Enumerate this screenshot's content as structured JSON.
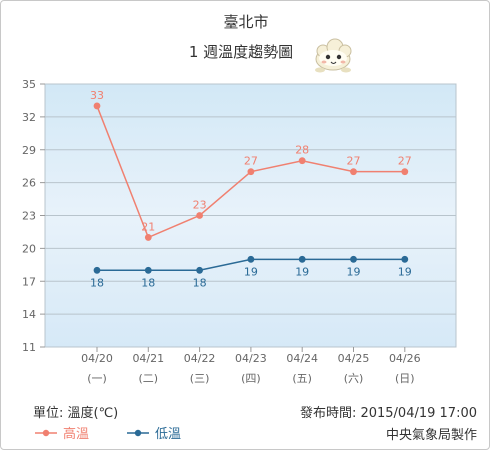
{
  "chart_data": {
    "type": "line",
    "title": "臺北市",
    "subtitle": "1 週溫度趨勢圖",
    "categories": [
      "04/20",
      "04/21",
      "04/22",
      "04/23",
      "04/24",
      "04/25",
      "04/26"
    ],
    "weekdays": [
      "(一)",
      "(二)",
      "(三)",
      "(四)",
      "(五)",
      "(六)",
      "(日)"
    ],
    "ylim": [
      11,
      35
    ],
    "yticks": [
      11,
      14,
      17,
      20,
      23,
      26,
      29,
      32,
      35
    ],
    "grid": true,
    "legend_position": "bottom-left",
    "series": [
      {
        "name": "高溫",
        "color": "#f08070",
        "values": [
          33,
          21,
          23,
          27,
          28,
          27,
          27
        ]
      },
      {
        "name": "低溫",
        "color": "#2a6a96",
        "values": [
          18,
          18,
          18,
          19,
          19,
          19,
          19
        ]
      }
    ]
  },
  "footer": {
    "unit_label": "單位: 溫度(℃)",
    "publish_time": "發布時間: 2015/04/19 17:00",
    "credit": "中央氣象局製作"
  },
  "mascot_icon": "cloud-mascot-icon"
}
